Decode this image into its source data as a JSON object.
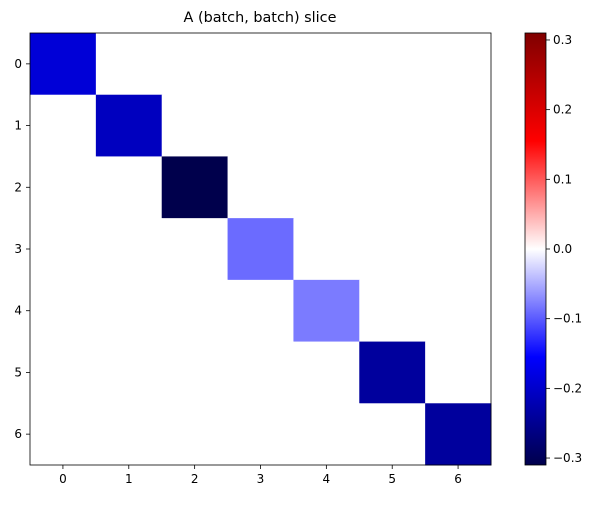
{
  "chart_data": {
    "type": "heatmap",
    "title": "A (batch, batch) slice",
    "xlabel": "",
    "ylabel": "",
    "x_ticks": [
      "0",
      "1",
      "2",
      "3",
      "4",
      "5",
      "6"
    ],
    "y_ticks": [
      "0",
      "1",
      "2",
      "3",
      "4",
      "5",
      "6"
    ],
    "values": [
      [
        -0.19,
        0.0,
        0.0,
        0.0,
        0.0,
        0.0,
        0.0
      ],
      [
        0.0,
        -0.21,
        0.0,
        0.0,
        0.0,
        0.0,
        0.0
      ],
      [
        0.0,
        0.0,
        -0.31,
        0.0,
        0.0,
        0.0,
        0.0
      ],
      [
        0.0,
        0.0,
        0.0,
        -0.09,
        0.0,
        0.0,
        0.0
      ],
      [
        0.0,
        0.0,
        0.0,
        0.0,
        -0.08,
        0.0,
        0.0
      ],
      [
        0.0,
        0.0,
        0.0,
        0.0,
        0.0,
        -0.24,
        0.0
      ],
      [
        0.0,
        0.0,
        0.0,
        0.0,
        0.0,
        0.0,
        -0.24
      ]
    ],
    "colormap": "seismic",
    "vmin": -0.31,
    "vmax": 0.31,
    "colorbar": {
      "ticks": [
        -0.3,
        -0.2,
        -0.1,
        0.0,
        0.1,
        0.2,
        0.3
      ],
      "tick_labels": [
        "−0.3",
        "−0.2",
        "−0.1",
        "0.0",
        "0.1",
        "0.2",
        "0.3"
      ],
      "position": "right"
    },
    "grid": false
  }
}
